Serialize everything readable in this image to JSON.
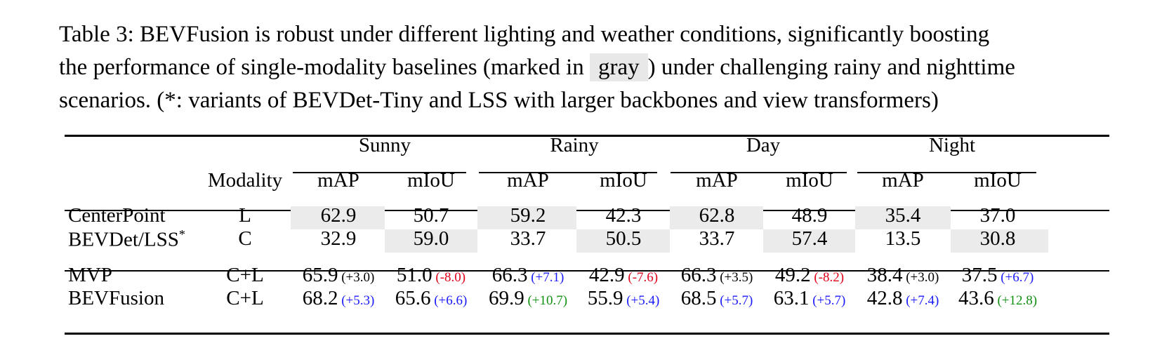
{
  "caption": {
    "line1": "Table 3: BEVFusion is robust under different lighting and weather conditions, significantly boosting",
    "line2_before": "the performance of single-modality baselines (marked in ",
    "gray_word": "gray",
    "line2_after": ") under challenging rainy and nighttime",
    "line3": "scenarios. (*: variants of BEVDet-Tiny and LSS with larger backbones and view transformers)"
  },
  "table": {
    "groups": [
      "Sunny",
      "Rainy",
      "Day",
      "Night"
    ],
    "modality_header": "Modality",
    "metric_headers": [
      "mAP",
      "mIoU",
      "mAP",
      "mIoU",
      "mAP",
      "mIoU",
      "mAP",
      "mIoU"
    ],
    "baseline_rows": [
      {
        "method": "CenterPoint",
        "modality": "L",
        "values": [
          "62.9",
          "50.7",
          "59.2",
          "42.3",
          "62.8",
          "48.9",
          "35.4",
          "37.0"
        ],
        "gray": [
          true,
          false,
          true,
          false,
          true,
          false,
          true,
          false
        ]
      },
      {
        "method": "BEVDet/LSS",
        "method_sup": "*",
        "modality": "C",
        "values": [
          "32.9",
          "59.0",
          "33.7",
          "50.5",
          "33.7",
          "57.4",
          "13.5",
          "30.8"
        ],
        "gray": [
          false,
          true,
          false,
          true,
          false,
          true,
          false,
          true
        ]
      }
    ],
    "fusion_rows": [
      {
        "method": "MVP",
        "modality": "C+L",
        "values": [
          "65.9",
          "51.0",
          "66.3",
          "42.9",
          "66.3",
          "49.2",
          "38.4",
          "37.5"
        ],
        "deltas": [
          "(+3.0)",
          "(-8.0)",
          "(+7.1)",
          "(-7.6)",
          "(+3.5)",
          "(-8.2)",
          "(+3.0)",
          "(+6.7)"
        ],
        "delta_colors": [
          "#000000",
          "#e0001a",
          "#1a1aff",
          "#e0001a",
          "#000000",
          "#e0001a",
          "#000000",
          "#1a1aff"
        ]
      },
      {
        "method": "BEVFusion",
        "modality": "C+L",
        "values": [
          "68.2",
          "65.6",
          "69.9",
          "55.9",
          "68.5",
          "63.1",
          "42.8",
          "43.6"
        ],
        "deltas": [
          "(+5.3)",
          "(+6.6)",
          "(+10.7)",
          "(+5.4)",
          "(+5.7)",
          "(+5.7)",
          "(+7.4)",
          "(+12.8)"
        ],
        "delta_colors": [
          "#1a1aff",
          "#1a1aff",
          "#109010",
          "#1a1aff",
          "#1a1aff",
          "#1a1aff",
          "#1a1aff",
          "#109010"
        ]
      }
    ]
  }
}
